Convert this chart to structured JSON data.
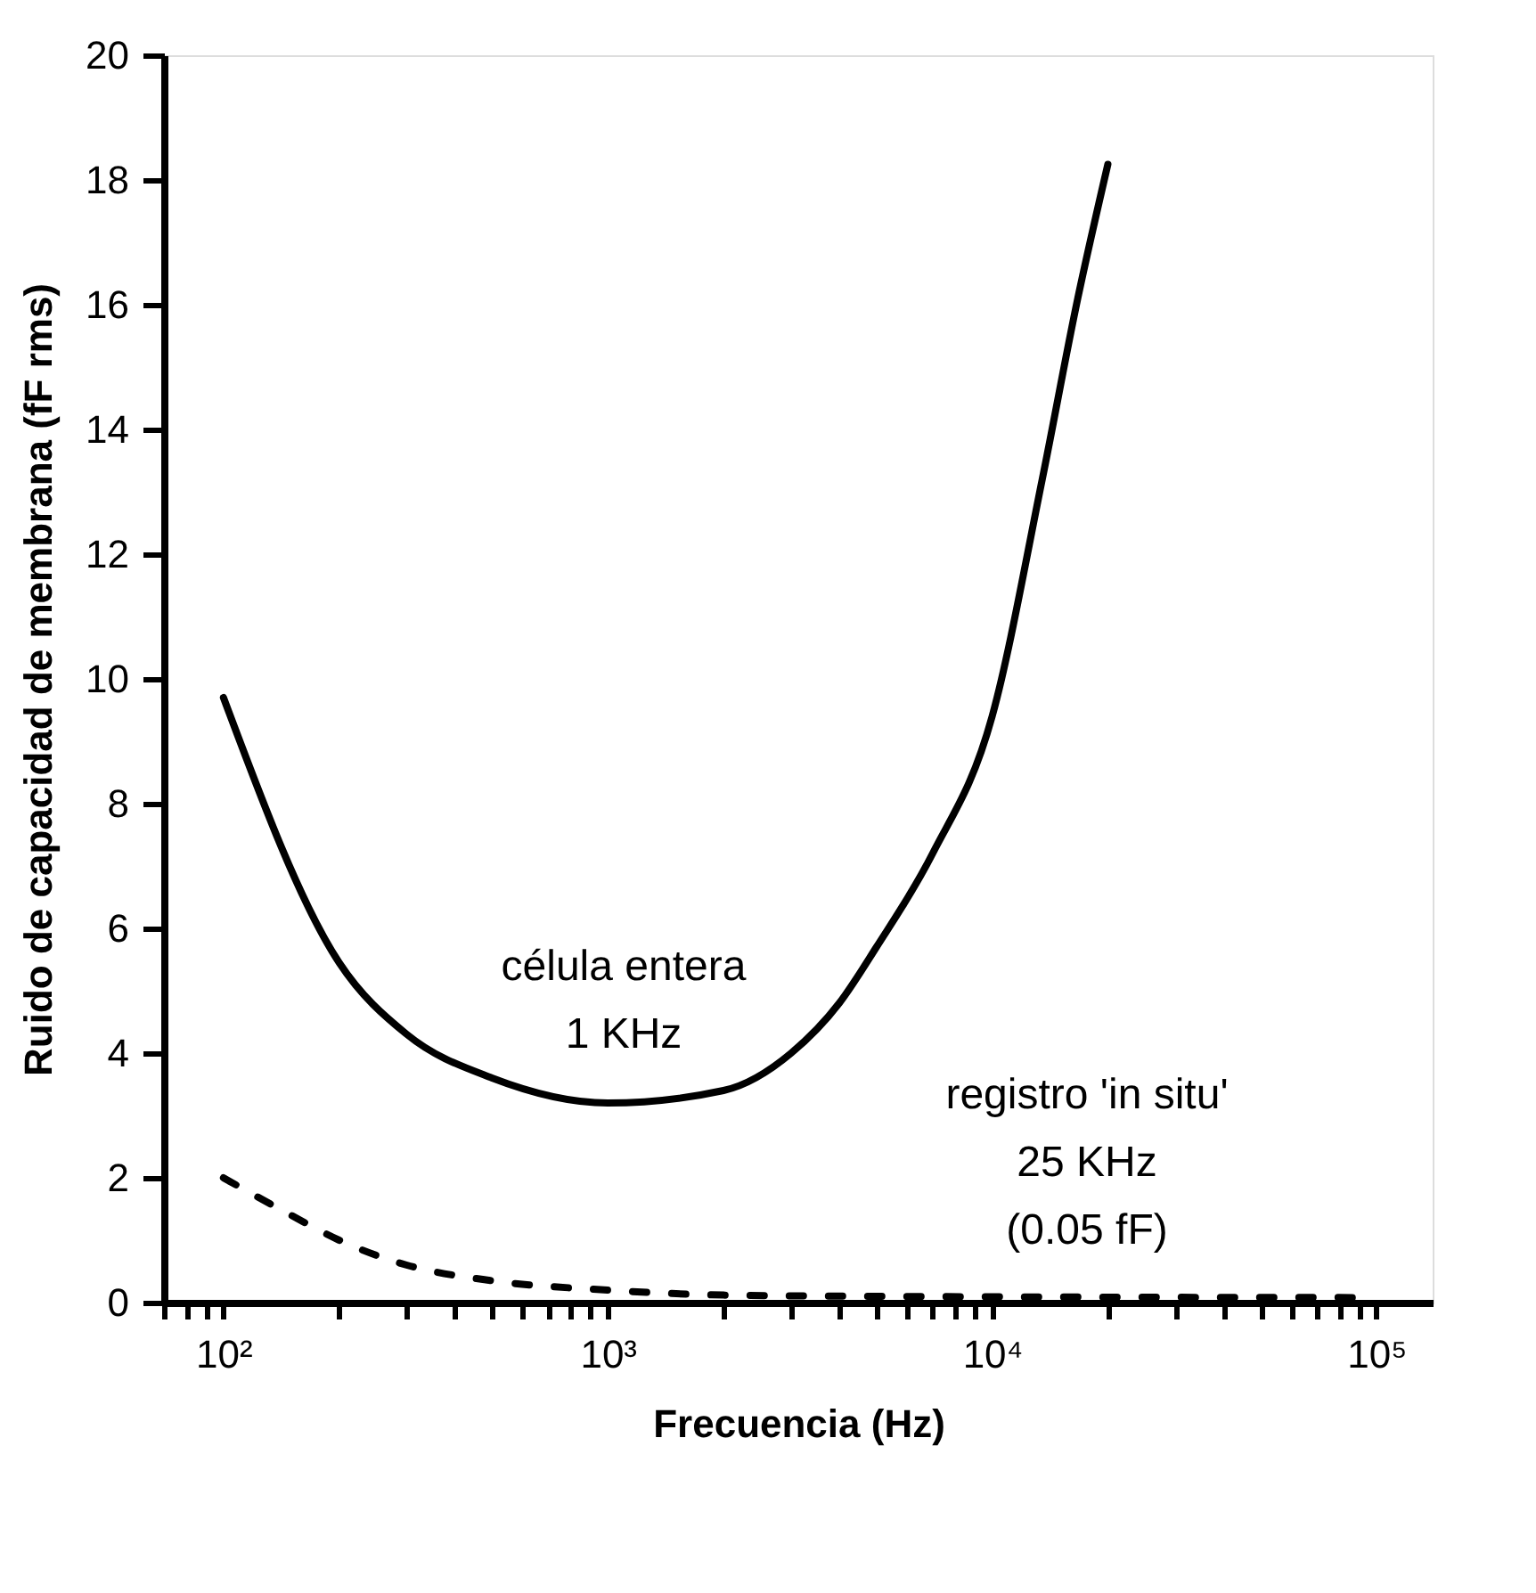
{
  "chart_data": {
    "type": "line",
    "xlabel": "Frecuencia (Hz)",
    "ylabel": "Ruido de capacidad de membrana (fF rms)",
    "log": "x",
    "xlim": [
      70,
      140000
    ],
    "ylim": [
      0,
      20
    ],
    "xticks": [
      {
        "value": 70,
        "label": null
      },
      {
        "value": 80,
        "label": null
      },
      {
        "value": 90,
        "label": null
      },
      {
        "value": 100,
        "label": "10²"
      },
      {
        "value": 200,
        "label": null
      },
      {
        "value": 300,
        "label": null
      },
      {
        "value": 400,
        "label": null
      },
      {
        "value": 500,
        "label": null
      },
      {
        "value": 600,
        "label": null
      },
      {
        "value": 700,
        "label": null
      },
      {
        "value": 800,
        "label": null
      },
      {
        "value": 900,
        "label": null
      },
      {
        "value": 1000,
        "label": "10³"
      },
      {
        "value": 2000,
        "label": null
      },
      {
        "value": 3000,
        "label": null
      },
      {
        "value": 4000,
        "label": null
      },
      {
        "value": 5000,
        "label": null
      },
      {
        "value": 6000,
        "label": null
      },
      {
        "value": 7000,
        "label": null
      },
      {
        "value": 8000,
        "label": null
      },
      {
        "value": 9000,
        "label": null
      },
      {
        "value": 10000,
        "label": "10⁴"
      },
      {
        "value": 20000,
        "label": null
      },
      {
        "value": 30000,
        "label": null
      },
      {
        "value": 40000,
        "label": null
      },
      {
        "value": 50000,
        "label": null
      },
      {
        "value": 60000,
        "label": null
      },
      {
        "value": 70000,
        "label": null
      },
      {
        "value": 80000,
        "label": null
      },
      {
        "value": 90000,
        "label": null
      },
      {
        "value": 100000,
        "label": "10⁵"
      }
    ],
    "yticks": [
      0,
      2,
      4,
      6,
      8,
      10,
      12,
      14,
      16,
      18,
      20
    ],
    "grid": false,
    "marker": "none",
    "series": [
      {
        "color": "#000000",
        "line_style": "solid",
        "x": [
          100,
          200,
          300,
          500,
          1000,
          2000,
          3000,
          4000,
          5000,
          7000,
          10000,
          13500,
          16700,
          20000
        ],
        "values": [
          9.7,
          5.45,
          4.3,
          3.6,
          3.2,
          3.4,
          4.0,
          4.8,
          5.7,
          7.2,
          9.4,
          13.2,
          16.1,
          18.25
        ]
      },
      {
        "color": "#000000",
        "line_style": "dashed",
        "x": [
          100,
          150,
          200,
          300,
          500,
          1000,
          2000,
          5000,
          90000
        ],
        "values": [
          2.0,
          1.4,
          1.0,
          0.6,
          0.35,
          0.2,
          0.12,
          0.1,
          0.08
        ]
      }
    ],
    "annotations": [
      "célula entera\n1 KHz",
      "registro 'in situ'\n25 KHz\n(0.05 fF)"
    ]
  }
}
